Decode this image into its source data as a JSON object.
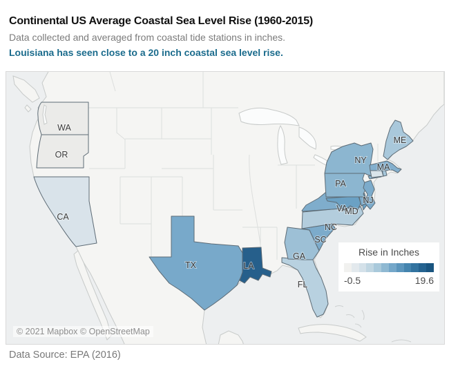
{
  "header": {
    "title": "Continental US Average Coastal Sea Level Rise (1960-2015)",
    "subtitle": "Data collected and averaged from coastal tide stations in inches.",
    "callout": "Louisiana has seen close to a 20 inch coastal sea level rise.",
    "callout_color": "#1a6b8c"
  },
  "map": {
    "attribution": "© 2021 Mapbox © OpenStreetMap",
    "states": [
      {
        "abbr": "WA",
        "color": "#ebebe9"
      },
      {
        "abbr": "OR",
        "color": "#ebebe9"
      },
      {
        "abbr": "CA",
        "color": "#d9e3ea"
      },
      {
        "abbr": "TX",
        "color": "#78a9ca"
      },
      {
        "abbr": "LA",
        "color": "#265f8b"
      },
      {
        "abbr": "FL",
        "color": "#b8d1e0"
      },
      {
        "abbr": "GA",
        "color": "#9dc0d6"
      },
      {
        "abbr": "SC",
        "color": "#7cabcb"
      },
      {
        "abbr": "NC",
        "color": "#b3cddd"
      },
      {
        "abbr": "VA",
        "color": "#7fadcc"
      },
      {
        "abbr": "MD",
        "color": "#6ba1c4"
      },
      {
        "abbr": "PA",
        "color": "#8cb6d0"
      },
      {
        "abbr": "NJ",
        "color": "#7cabcb"
      },
      {
        "abbr": "NY",
        "color": "#8cb6d0"
      },
      {
        "abbr": "MA",
        "color": "#83afcd"
      },
      {
        "abbr": "ME",
        "color": "#a9c8db"
      }
    ],
    "minor_regions": [
      {
        "name": "DE",
        "color": "#7cabcb"
      },
      {
        "name": "CT",
        "color": "#d9e4ea"
      },
      {
        "name": "RI",
        "color": "#a5c6da"
      },
      {
        "name": "Long Island NY",
        "color": "#8cb6d0"
      },
      {
        "name": "Delmarva sliver",
        "color": "#6ba1c4"
      }
    ]
  },
  "legend": {
    "title": "Rise in Inches",
    "min_label": "-0.5",
    "max_label": "19.6",
    "steps": [
      "#f1f1ef",
      "#e3e9ed",
      "#d4e1e9",
      "#c0d6e2",
      "#a9c9db",
      "#8fb9d2",
      "#74a7c9",
      "#5b95bc",
      "#4484ae",
      "#32739f",
      "#256390",
      "#1a5580"
    ]
  },
  "footer": {
    "source": "Data Source: EPA (2016)"
  },
  "chart_data": {
    "type": "choropleth",
    "title": "Continental US Average Coastal Sea Level Rise (1960-2015)",
    "subtitle": "Data collected and averaged from coastal tide stations in inches.",
    "annotation": "Louisiana has seen close to a 20 inch coastal sea level rise.",
    "legend_title": "Rise in Inches",
    "units": "inches",
    "scale_domain": [
      -0.5,
      19.6
    ],
    "legend_position": "right",
    "source": "Data Source: EPA (2016)",
    "categories": [
      "WA",
      "OR",
      "CA",
      "TX",
      "LA",
      "FL",
      "GA",
      "SC",
      "NC",
      "VA",
      "MD",
      "PA",
      "NJ",
      "NY",
      "MA",
      "ME"
    ],
    "values_estimated_from_shade": [
      0,
      0,
      2.5,
      12,
      19.6,
      5.5,
      7.5,
      11,
      6,
      10.5,
      13,
      9.5,
      11,
      9.5,
      10,
      7.5
    ]
  }
}
